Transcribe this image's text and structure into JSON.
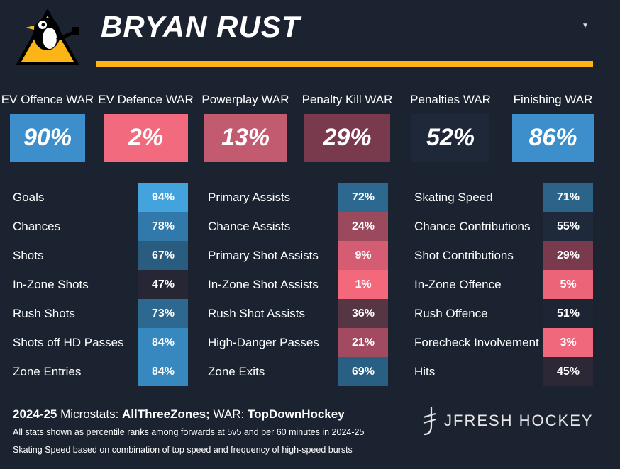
{
  "header": {
    "player_name": "BRYAN RUST",
    "logo_icon": "penguins-logo-icon",
    "menu_icon": "caret-down-icon"
  },
  "colors": {
    "background": "#1b2230",
    "gold": "#fcb514",
    "high": "#3f90cc",
    "low": "#f26a7e"
  },
  "war": [
    {
      "label": "EV Offence WAR",
      "value": "90%",
      "color": "#3d8fcb"
    },
    {
      "label": "EV Defence WAR",
      "value": "2%",
      "color": "#f26a7e"
    },
    {
      "label": "Powerplay WAR",
      "value": "13%",
      "color": "#c25a70"
    },
    {
      "label": "Penalty Kill WAR",
      "value": "29%",
      "color": "#7a3a4e"
    },
    {
      "label": "Penalties WAR",
      "value": "52%",
      "color": "#1e2838"
    },
    {
      "label": "Finishing WAR",
      "value": "86%",
      "color": "#3d8fcb"
    }
  ],
  "stats": [
    [
      {
        "label": "Goals",
        "value": "94%",
        "color": "#43a3dc"
      },
      {
        "label": "Chances",
        "value": "78%",
        "color": "#3179aa"
      },
      {
        "label": "Shots",
        "value": "67%",
        "color": "#2a5c7f"
      },
      {
        "label": "In-Zone Shots",
        "value": "47%",
        "color": "#262634"
      },
      {
        "label": "Rush Shots",
        "value": "73%",
        "color": "#2c6890"
      },
      {
        "label": "Shots off HD Passes",
        "value": "84%",
        "color": "#3888c0"
      },
      {
        "label": "Zone Entries",
        "value": "84%",
        "color": "#3888c0"
      }
    ],
    [
      {
        "label": "Primary Assists",
        "value": "72%",
        "color": "#2c6890"
      },
      {
        "label": "Chance Assists",
        "value": "24%",
        "color": "#9b4a5e"
      },
      {
        "label": "Primary Shot Assists",
        "value": "9%",
        "color": "#d45d73"
      },
      {
        "label": "In-Zone Shot Assists",
        "value": "1%",
        "color": "#f4687c"
      },
      {
        "label": "Rush Shot Assists",
        "value": "36%",
        "color": "#573644"
      },
      {
        "label": "High-Danger Passes",
        "value": "21%",
        "color": "#a24a60"
      },
      {
        "label": "Zone Exits",
        "value": "69%",
        "color": "#2a5f84"
      }
    ],
    [
      {
        "label": "Skating Speed",
        "value": "71%",
        "color": "#2b6389"
      },
      {
        "label": "Chance Contributions",
        "value": "55%",
        "color": "#1e2a3c"
      },
      {
        "label": "Shot Contributions",
        "value": "29%",
        "color": "#7a3a4e"
      },
      {
        "label": "In-Zone Offence",
        "value": "5%",
        "color": "#ec6478"
      },
      {
        "label": "Rush Offence",
        "value": "51%",
        "color": "#1d2534"
      },
      {
        "label": "Forecheck Involvement",
        "value": "3%",
        "color": "#f0687c"
      },
      {
        "label": "Hits",
        "value": "45%",
        "color": "#2c2836"
      }
    ]
  ],
  "footer": {
    "season": "2024-25",
    "microstats_label": "Microstats:",
    "microstats_source": "AllThreeZones;",
    "war_label": "WAR:",
    "war_source": "TopDownHockey",
    "note1": "All stats shown as percentile ranks among forwards at 5v5 and per 60 minutes in 2024-25",
    "note2": "Skating Speed based on combination of top speed and frequency of high-speed bursts",
    "brand": "JFRESH HOCKEY",
    "brand_icon": "jfresh-logo-icon"
  }
}
